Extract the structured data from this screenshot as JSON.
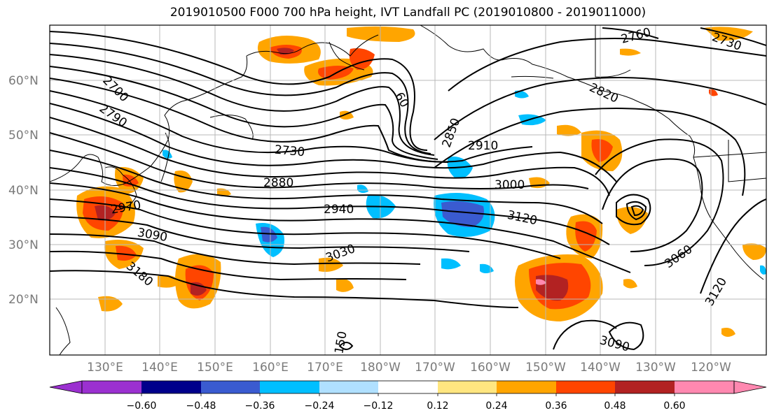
{
  "title": "2019010500 F000 700 hPa height, IVT Landfall PC (2019010800 - 2019011000)",
  "latitude_labels": [
    "60°N",
    "50°N",
    "40°N",
    "30°N",
    "20°N"
  ],
  "longitude_labels": [
    "130°E",
    "140°E",
    "150°E",
    "160°E",
    "170°E",
    "180°W",
    "170°W",
    "160°W",
    "150°W",
    "140°W",
    "130°W",
    "120°W"
  ],
  "colorbar": {
    "tick_labels": [
      "−0.60",
      "−0.48",
      "−0.36",
      "−0.24",
      "−0.12",
      "0.12",
      "0.24",
      "0.36",
      "0.48",
      "0.60"
    ],
    "colors": [
      "#9b30d0",
      "#00008b",
      "#3a5bd0",
      "#00bfff",
      "#b0e0ff",
      "#ffffff",
      "#ffe680",
      "#ffa500",
      "#ff4500",
      "#b22222",
      "#ff88b0"
    ]
  },
  "contour_labels": [
    "2700",
    "2790",
    "2730",
    "2880",
    "2940",
    "3030",
    "3090",
    "3180",
    "2970",
    "2910",
    "3000",
    "3120",
    "2850",
    "2820",
    "2760",
    "2730",
    "3060",
    "3120",
    "3090",
    "150",
    "60"
  ]
}
